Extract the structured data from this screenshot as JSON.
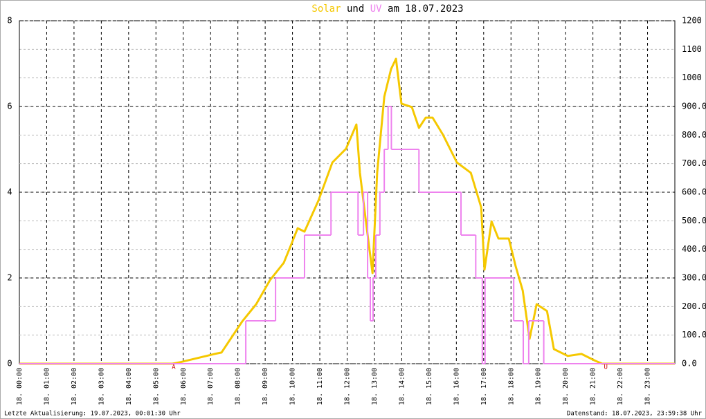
{
  "chart_data": {
    "type": "line",
    "title_connector": "und",
    "title_suffix": "am 18.07.2023",
    "xlim": [
      0,
      24
    ],
    "xticks": [
      {
        "value": 0,
        "label": "18. 00:00"
      },
      {
        "value": 1,
        "label": "18. 01:00"
      },
      {
        "value": 2,
        "label": "18. 02:00"
      },
      {
        "value": 3,
        "label": "18. 03:00"
      },
      {
        "value": 4,
        "label": "18. 04:00"
      },
      {
        "value": 5,
        "label": "18. 05:00"
      },
      {
        "value": 6,
        "label": "18. 06:00"
      },
      {
        "value": 7,
        "label": "18. 07:00"
      },
      {
        "value": 8,
        "label": "18. 08:00"
      },
      {
        "value": 9,
        "label": "18. 09:00"
      },
      {
        "value": 10,
        "label": "18. 10:00"
      },
      {
        "value": 11,
        "label": "18. 11:00"
      },
      {
        "value": 12,
        "label": "18. 12:00"
      },
      {
        "value": 13,
        "label": "18. 13:00"
      },
      {
        "value": 14,
        "label": "18. 14:00"
      },
      {
        "value": 15,
        "label": "18. 15:00"
      },
      {
        "value": 16,
        "label": "18. 16:00"
      },
      {
        "value": 17,
        "label": "18. 17:00"
      },
      {
        "value": 18,
        "label": "18. 18:00"
      },
      {
        "value": 19,
        "label": "18. 19:00"
      },
      {
        "value": 20,
        "label": "18. 20:00"
      },
      {
        "value": 21,
        "label": "18. 21:00"
      },
      {
        "value": 22,
        "label": "18. 22:00"
      },
      {
        "value": 23,
        "label": "18. 23:00"
      }
    ],
    "ylim": [
      0,
      8
    ],
    "yticks": [
      0,
      2,
      4,
      6,
      8
    ],
    "y2lim": [
      0,
      1200
    ],
    "y2ticks": [
      {
        "value": 0,
        "label": "0.0"
      },
      {
        "value": 100,
        "label": "100.0"
      },
      {
        "value": 200,
        "label": "200.0"
      },
      {
        "value": 300,
        "label": "300.0"
      },
      {
        "value": 400,
        "label": "400.0"
      },
      {
        "value": 500,
        "label": "500.0"
      },
      {
        "value": 600,
        "label": "600.0"
      },
      {
        "value": 700,
        "label": "700.0"
      },
      {
        "value": 800,
        "label": "800.0"
      },
      {
        "value": 900,
        "label": "900.0"
      },
      1000,
      1100,
      1200
    ],
    "grid": true,
    "series": [
      {
        "name": "Solar",
        "color": "#f5c800",
        "axis": "y2",
        "step": false,
        "x": [
          0,
          5.6,
          5.88,
          7.15,
          7.4,
          7.65,
          8.16,
          8.67,
          9.18,
          9.68,
          9.94,
          10.19,
          10.44,
          10.95,
          11.46,
          11.96,
          12.34,
          12.47,
          12.72,
          12.93,
          13.1,
          13.36,
          13.61,
          13.79,
          13.99,
          14.37,
          14.63,
          14.88,
          15.13,
          15.51,
          16.02,
          16.53,
          16.91,
          17.03,
          17.29,
          17.54,
          17.92,
          18.17,
          18.43,
          18.68,
          18.94,
          19.32,
          19.57,
          20.08,
          20.58,
          21.09,
          21.34,
          24
        ],
        "values": [
          0,
          0,
          5,
          34,
          39,
          75,
          148,
          208,
          293,
          353,
          414,
          474,
          462,
          571,
          704,
          752,
          837,
          668,
          474,
          317,
          668,
          934,
          1031,
          1067,
          910,
          898,
          825,
          861,
          861,
          801,
          704,
          668,
          547,
          329,
          498,
          438,
          438,
          341,
          256,
          87,
          208,
          184,
          51,
          27,
          34,
          10,
          0,
          0
        ]
      },
      {
        "name": "UV",
        "color": "#ee82ee",
        "axis": "y",
        "step": true,
        "x": [
          0,
          8.29,
          9.38,
          10.44,
          11.41,
          12.4,
          12.6,
          12.75,
          12.85,
          12.95,
          13.05,
          13.2,
          13.36,
          13.5,
          13.62,
          14.63,
          16.17,
          16.71,
          16.95,
          17.05,
          18.1,
          18.45,
          18.65,
          19.2,
          24
        ],
        "values": [
          0,
          1,
          2,
          3,
          4,
          3,
          4,
          2,
          1,
          2,
          3,
          4,
          5,
          6,
          5,
          4,
          3,
          2,
          0,
          2,
          1,
          0,
          1,
          0,
          0
        ]
      }
    ],
    "annotations": [
      {
        "text": "A",
        "x": 5.65,
        "color": "#cc0000"
      },
      {
        "text": "U",
        "x": 21.47,
        "color": "#cc0000"
      }
    ],
    "footer_left": "Letzte Aktualisierung: 19.07.2023, 00:01:30 Uhr",
    "footer_right": "Datenstand: 18.07.2023, 23:59:38 Uhr"
  }
}
